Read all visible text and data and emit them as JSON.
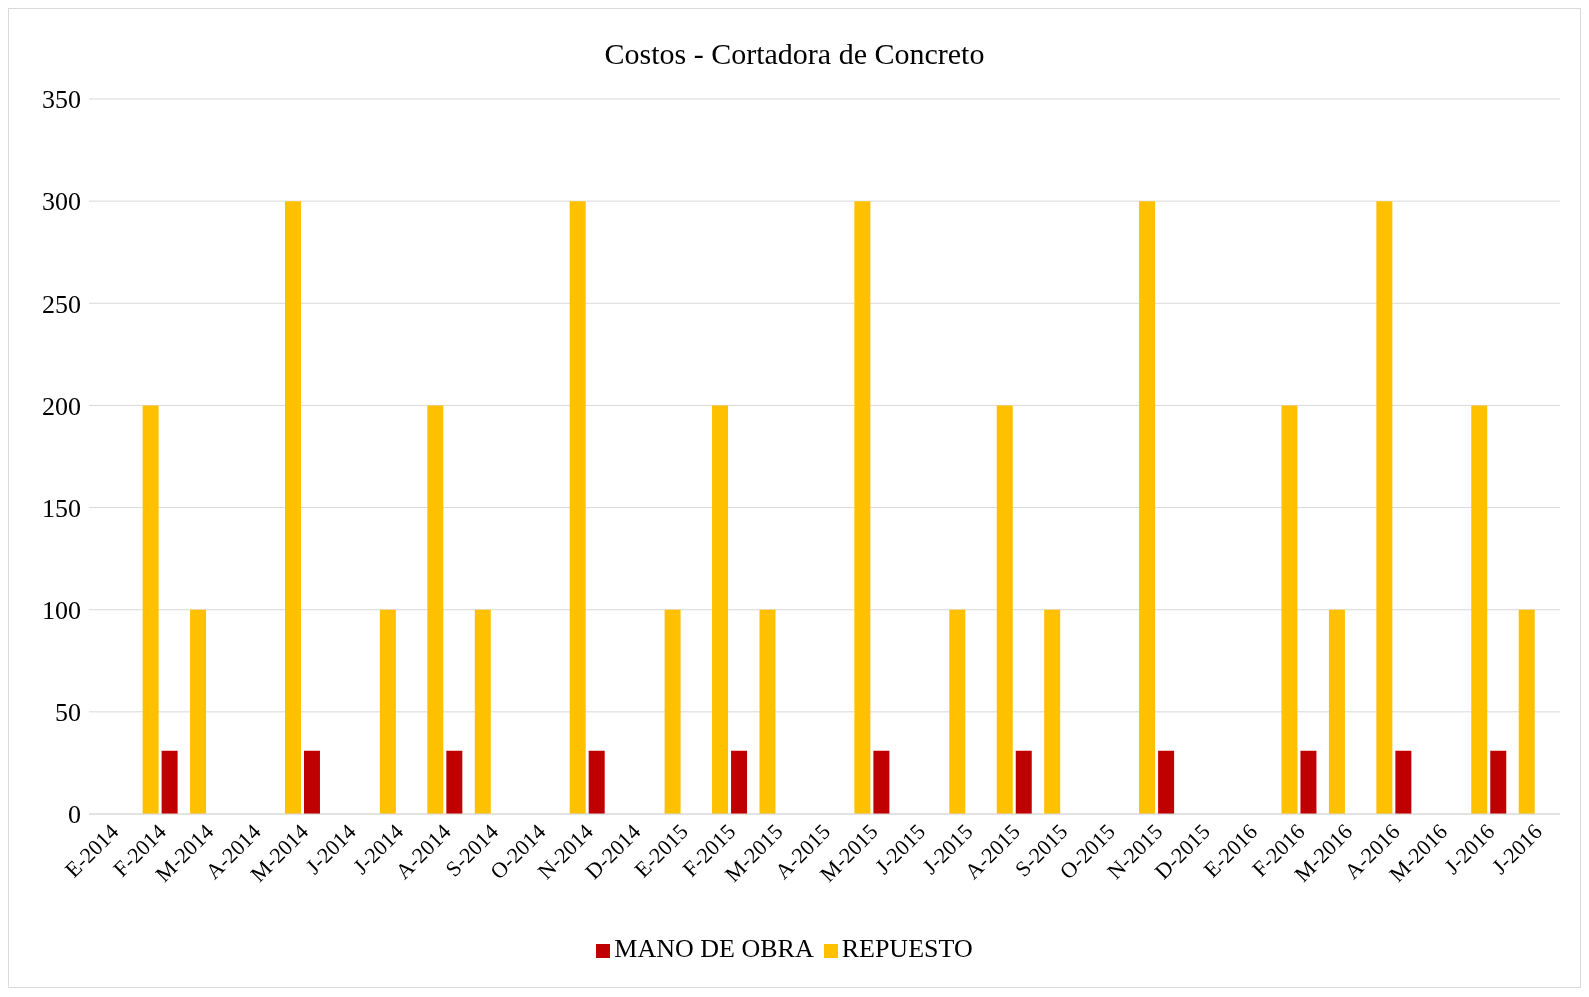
{
  "chart_data": {
    "type": "bar",
    "title": "Costos - Cortadora de Concreto",
    "categories": [
      "E-2014",
      "F-2014",
      "M-2014",
      "A-2014",
      "M-2014",
      "J-2014",
      "J-2014",
      "A-2014",
      "S-2014",
      "O-2014",
      "N-2014",
      "D-2014",
      "E-2015",
      "F-2015",
      "M-2015",
      "A-2015",
      "M-2015",
      "J-2015",
      "J-2015",
      "A-2015",
      "S-2015",
      "O-2015",
      "N-2015",
      "D-2015",
      "E-2016",
      "F-2016",
      "M-2016",
      "A-2016",
      "M-2016",
      "J-2016",
      "J-2016"
    ],
    "series": [
      {
        "name": "REPUESTO",
        "color": "#ffc000",
        "values": [
          null,
          200,
          100,
          null,
          300,
          null,
          100,
          200,
          100,
          null,
          300,
          null,
          100,
          200,
          100,
          null,
          300,
          null,
          100,
          200,
          100,
          null,
          300,
          null,
          null,
          200,
          100,
          300,
          null,
          200,
          100
        ]
      },
      {
        "name": "MANO DE OBRA",
        "color": "#c00000",
        "values": [
          null,
          31,
          null,
          null,
          31,
          null,
          null,
          31,
          null,
          null,
          31,
          null,
          null,
          31,
          null,
          null,
          31,
          null,
          null,
          31,
          null,
          null,
          31,
          null,
          null,
          31,
          null,
          31,
          null,
          31,
          null
        ]
      }
    ],
    "ylim": [
      0,
      350
    ],
    "yticks": [
      0,
      50,
      100,
      150,
      200,
      250,
      300,
      350
    ],
    "grid": "y",
    "legend": "bottom"
  }
}
